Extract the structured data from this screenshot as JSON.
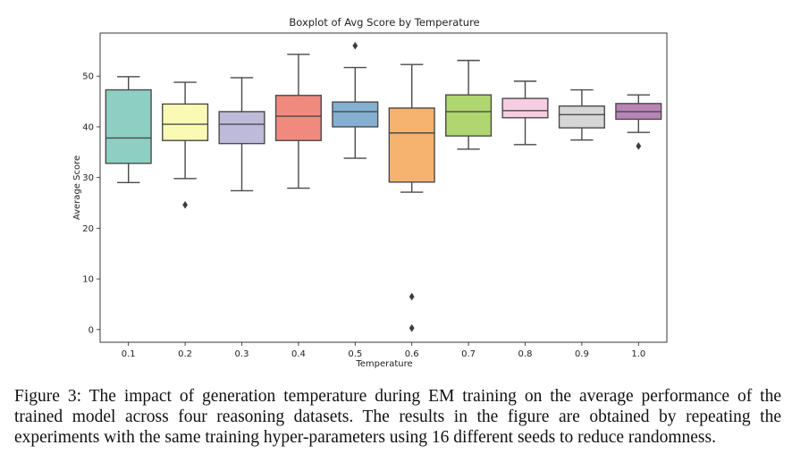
{
  "chart_data": {
    "type": "box",
    "title": "Boxplot of Avg Score by Temperature",
    "xlabel": "Temperature",
    "ylabel": "Average Score",
    "ylim": [
      -2.5,
      58.5
    ],
    "yticks": [
      0,
      10,
      20,
      30,
      40,
      50
    ],
    "categories": [
      "0.1",
      "0.2",
      "0.3",
      "0.4",
      "0.5",
      "0.6",
      "0.7",
      "0.8",
      "0.9",
      "1.0"
    ],
    "boxes": [
      {
        "category": "0.1",
        "whisker_low": 29.0,
        "q1": 32.8,
        "median": 37.8,
        "q3": 47.3,
        "whisker_high": 49.9,
        "outliers": [],
        "color": "#8ecfc3"
      },
      {
        "category": "0.2",
        "whisker_low": 29.8,
        "q1": 37.3,
        "median": 40.5,
        "q3": 44.5,
        "whisker_high": 48.8,
        "outliers": [
          24.6
        ],
        "color": "#fbfab5"
      },
      {
        "category": "0.3",
        "whisker_low": 27.4,
        "q1": 36.7,
        "median": 40.5,
        "q3": 43.0,
        "whisker_high": 49.7,
        "outliers": [],
        "color": "#bebad9"
      },
      {
        "category": "0.4",
        "whisker_low": 27.9,
        "q1": 37.3,
        "median": 42.1,
        "q3": 46.2,
        "whisker_high": 54.3,
        "outliers": [],
        "color": "#f08a7e"
      },
      {
        "category": "0.5",
        "whisker_low": 33.8,
        "q1": 40.0,
        "median": 43.0,
        "q3": 44.9,
        "whisker_high": 51.7,
        "outliers": [
          56.0
        ],
        "color": "#84afd0"
      },
      {
        "category": "0.6",
        "whisker_low": 27.1,
        "q1": 29.1,
        "median": 38.8,
        "q3": 43.7,
        "whisker_high": 52.3,
        "outliers": [
          6.5,
          0.3
        ],
        "color": "#f5b36f"
      },
      {
        "category": "0.7",
        "whisker_low": 35.6,
        "q1": 38.2,
        "median": 43.0,
        "q3": 46.3,
        "whisker_high": 53.1,
        "outliers": [],
        "color": "#b0d76f"
      },
      {
        "category": "0.8",
        "whisker_low": 36.5,
        "q1": 41.8,
        "median": 43.2,
        "q3": 45.6,
        "whisker_high": 49.0,
        "outliers": [],
        "color": "#f7cde2"
      },
      {
        "category": "0.9",
        "whisker_low": 37.4,
        "q1": 39.8,
        "median": 42.4,
        "q3": 44.1,
        "whisker_high": 47.3,
        "outliers": [],
        "color": "#d6d6d6"
      },
      {
        "category": "1.0",
        "whisker_low": 38.9,
        "q1": 41.5,
        "median": 43.0,
        "q3": 44.6,
        "whisker_high": 46.3,
        "outliers": [
          36.2
        ],
        "color": "#b884b6"
      }
    ]
  },
  "caption": {
    "lines": [
      "Figure 3: The impact of generation temperature during EM training on the average performance of the",
      "trained model across four reasoning datasets. The results in the figure are obtained by repeating the",
      "experiments with the same training hyper-parameters using 16 different seeds to reduce randomness."
    ]
  }
}
